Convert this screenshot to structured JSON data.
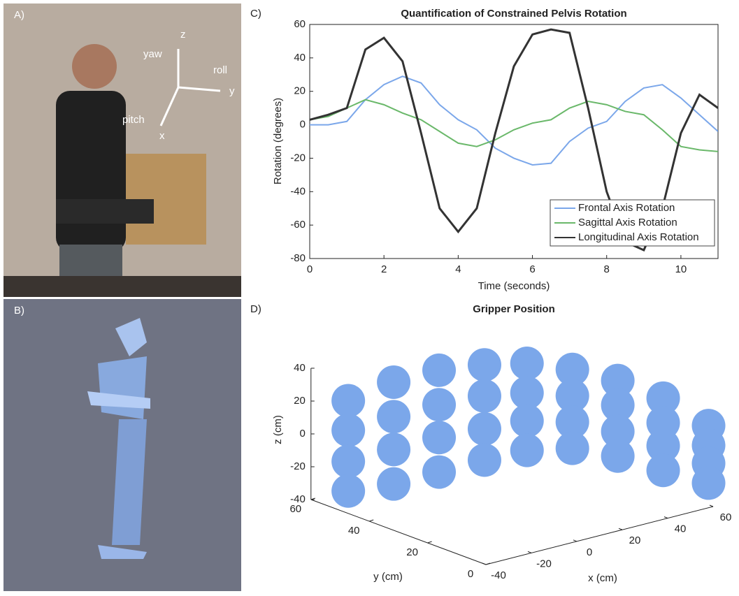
{
  "panels": {
    "a": {
      "label": "A)",
      "axis_labels": {
        "z": "z",
        "yaw": "yaw",
        "roll": "roll",
        "y": "y",
        "pitch": "pitch",
        "x": "x"
      }
    },
    "b": {
      "label": "B)"
    }
  },
  "chart_data": [
    {
      "type": "line",
      "label": "C)",
      "title": "Quantification of Constrained Pelvis Rotation",
      "xlabel": "Time (seconds)",
      "ylabel": "Rotation (degrees)",
      "x": [
        0,
        0.5,
        1,
        1.5,
        2,
        2.5,
        3,
        3.5,
        4,
        4.5,
        5,
        5.5,
        6,
        6.5,
        7,
        7.5,
        8,
        8.5,
        9,
        9.5,
        10,
        10.5,
        11
      ],
      "series": [
        {
          "name": "Frontal Axis Rotation",
          "color": "#7ba7ea",
          "values": [
            0,
            0,
            2,
            15,
            24,
            29,
            25,
            12,
            3,
            -3,
            -14,
            -20,
            -24,
            -23,
            -10,
            -2,
            2,
            14,
            22,
            24,
            16,
            6,
            -4
          ]
        },
        {
          "name": "Sagittal Axis Rotation",
          "color": "#6ab86a",
          "values": [
            3,
            5,
            10,
            15,
            12,
            7,
            3,
            -4,
            -11,
            -13,
            -9,
            -3,
            1,
            3,
            10,
            14,
            12,
            8,
            6,
            -3,
            -13,
            -15,
            -16
          ]
        },
        {
          "name": "Longitudinal Axis Rotation",
          "color": "#333333",
          "values": [
            3,
            6,
            10,
            45,
            52,
            38,
            -5,
            -50,
            -64,
            -50,
            -5,
            35,
            54,
            57,
            55,
            10,
            -40,
            -70,
            -75,
            -50,
            -5,
            18,
            10
          ]
        }
      ],
      "xlim": [
        0,
        11
      ],
      "ylim": [
        -80,
        60
      ],
      "xticks": [
        0,
        2,
        4,
        6,
        8,
        10
      ],
      "yticks": [
        -80,
        -60,
        -40,
        -20,
        0,
        20,
        40,
        60
      ],
      "legend": "lower right"
    },
    {
      "type": "scatter3d",
      "label": "D)",
      "title": "Gripper Position",
      "xlabel": "x (cm)",
      "ylabel": "y (cm)",
      "zlabel": "z (cm)",
      "color": "#7ba7ea",
      "points": {
        "x": [
          -30,
          -19,
          -8,
          3,
          14,
          25,
          36,
          47,
          58,
          -30,
          -19,
          -8,
          3,
          14,
          25,
          36,
          47,
          58,
          -30,
          -19,
          -8,
          3,
          14,
          25,
          36,
          47,
          58,
          -30,
          -19,
          -8,
          3,
          14,
          25,
          36,
          47,
          58
        ],
        "y": [
          55,
          48,
          41,
          34,
          28,
          21,
          14,
          7,
          0,
          55,
          48,
          41,
          34,
          28,
          21,
          14,
          7,
          0,
          55,
          48,
          41,
          34,
          28,
          21,
          14,
          7,
          0,
          55,
          48,
          41,
          34,
          28,
          21,
          14,
          7,
          0
        ],
        "z": [
          20,
          32,
          40,
          44,
          45,
          42,
          36,
          26,
          10,
          2,
          11,
          19,
          25,
          27,
          26,
          21,
          11,
          -2,
          -17,
          -9,
          -1,
          5,
          10,
          10,
          5,
          -3,
          -13,
          -35,
          -30,
          -22,
          -14,
          -8,
          -6,
          -10,
          -18,
          -25
        ]
      },
      "xlim": [
        -40,
        60
      ],
      "ylim": [
        0,
        60
      ],
      "zlim": [
        -40,
        40
      ],
      "xticks": [
        -40,
        -20,
        0,
        20,
        40,
        60
      ],
      "yticks": [
        0,
        20,
        40,
        60
      ],
      "zticks": [
        -40,
        -20,
        0,
        20,
        40
      ]
    }
  ]
}
